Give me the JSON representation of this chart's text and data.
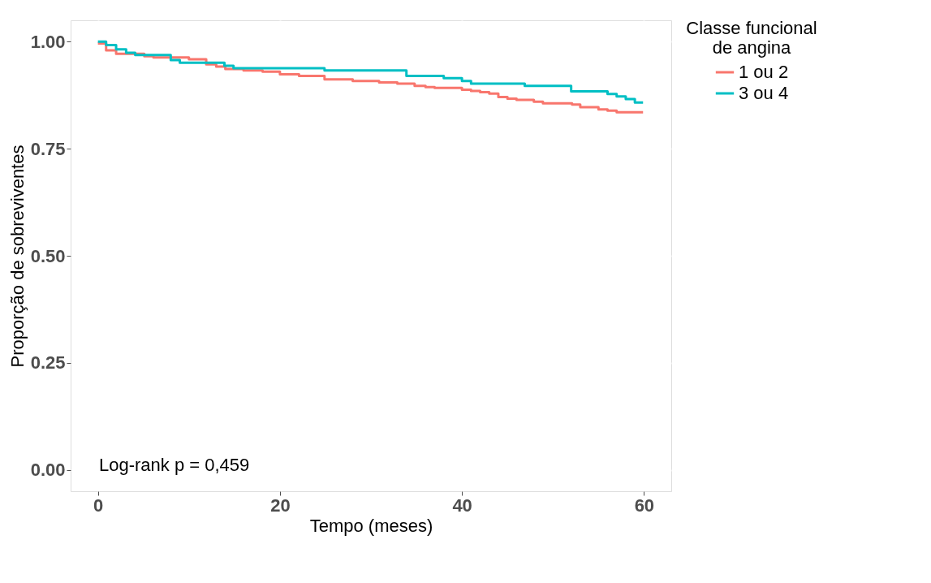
{
  "chart_data": {
    "type": "step",
    "xlabel": "Tempo (meses)",
    "ylabel": "Proporção de sobreviventes",
    "legend_title": "Classe funcional\nde angina",
    "legend": "right",
    "grid": true,
    "line_style": "solid",
    "xlim": [
      -3,
      63
    ],
    "xticks": [
      0,
      20,
      40,
      60
    ],
    "ylim": [
      -0.05,
      1.05
    ],
    "yticks": [
      {
        "value": 0,
        "label": "0.00"
      },
      {
        "value": 0.25,
        "label": "0.25"
      },
      {
        "value": 0.5,
        "label": "0.50"
      },
      {
        "value": 0.75,
        "label": "0.75"
      },
      {
        "value": 1,
        "label": "1.00"
      }
    ],
    "annotations": [
      "Log-rank p = 0,459"
    ],
    "series": [
      {
        "name": "1 ou 2",
        "color": "#f8766d",
        "x": [
          0,
          0.9,
          2.0,
          5.1,
          6.1,
          10.0,
          11.9,
          13.0,
          14.0,
          16.0,
          18.1,
          20.0,
          22.1,
          24.9,
          28.0,
          30.9,
          32.9,
          34.8,
          36.0,
          37.0,
          40.0,
          41.0,
          42.0,
          43.0,
          44.0,
          45.0,
          46.0,
          47.9,
          48.9,
          52.1,
          53.0,
          55.0,
          56.0,
          57.0,
          59.9
        ],
        "values": [
          0.996,
          0.98,
          0.972,
          0.966,
          0.963,
          0.959,
          0.947,
          0.942,
          0.936,
          0.933,
          0.93,
          0.924,
          0.92,
          0.912,
          0.908,
          0.905,
          0.902,
          0.897,
          0.894,
          0.892,
          0.888,
          0.885,
          0.882,
          0.879,
          0.871,
          0.867,
          0.864,
          0.86,
          0.856,
          0.853,
          0.847,
          0.842,
          0.839,
          0.835,
          0.835
        ]
      },
      {
        "name": "3 ou 4",
        "color": "#00bfc4",
        "x": [
          0,
          0.9,
          2.0,
          3.1,
          4.1,
          8.0,
          9.0,
          13.9,
          14.9,
          24.9,
          33.9,
          38.0,
          40.0,
          41.0,
          46.9,
          52.0,
          56.0,
          57.0,
          58.0,
          59.0,
          59.9
        ],
        "values": [
          1.0,
          0.992,
          0.982,
          0.974,
          0.969,
          0.957,
          0.951,
          0.944,
          0.938,
          0.933,
          0.92,
          0.915,
          0.908,
          0.902,
          0.897,
          0.884,
          0.878,
          0.872,
          0.866,
          0.858,
          0.858
        ]
      }
    ]
  }
}
